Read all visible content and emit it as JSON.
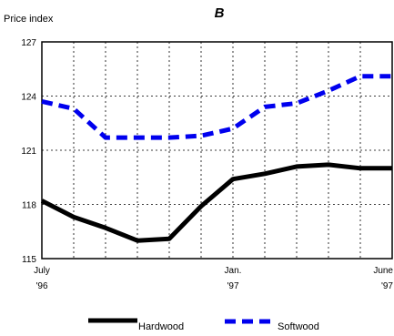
{
  "chart_data": {
    "type": "line",
    "title": "B",
    "ylabel": "Price index",
    "xlabel": "",
    "ylim": [
      115,
      127
    ],
    "yticks": [
      115,
      118,
      121,
      124,
      127
    ],
    "xlim": [
      0,
      11
    ],
    "x": [
      0,
      1,
      2,
      3,
      4,
      5,
      6,
      7,
      8,
      9,
      10,
      11
    ],
    "xtick_labels": [
      {
        "x": 0,
        "line1": "July",
        "line2": "'96"
      },
      {
        "x": 6,
        "line1": "Jan.",
        "line2": "'97"
      },
      {
        "x": 11,
        "line1": "June",
        "line2": "'97"
      }
    ],
    "grid": true,
    "legend_position": "bottom",
    "series": [
      {
        "name": "Hardwood",
        "color": "#000000",
        "style": "solid",
        "values": [
          118.2,
          117.3,
          116.7,
          116.0,
          116.1,
          117.9,
          119.4,
          119.7,
          120.1,
          120.2,
          120.0,
          120.0
        ]
      },
      {
        "name": "Softwood",
        "color": "#0000ee",
        "style": "dashed",
        "values": [
          123.7,
          123.3,
          121.7,
          121.7,
          121.7,
          121.8,
          122.2,
          123.4,
          123.6,
          124.3,
          125.1,
          125.1
        ]
      }
    ]
  }
}
